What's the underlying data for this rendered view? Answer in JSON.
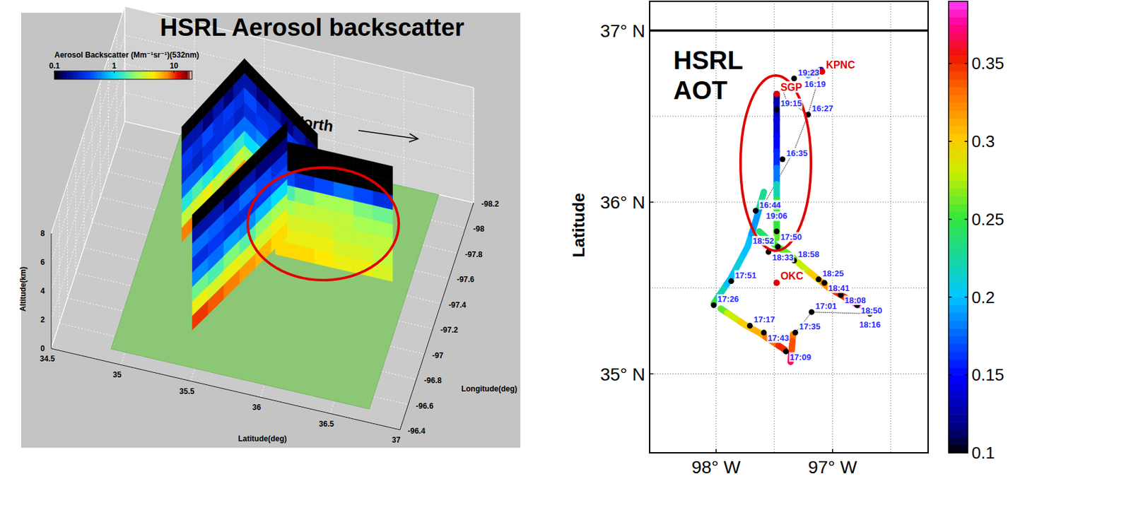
{
  "chart_data": [
    {
      "type": "curtain3d",
      "title": "HSRL Aerosol backscatter",
      "annotation": "North",
      "colorbar": {
        "label": "Aerosol Backscatter (Mm⁻¹sr⁻¹)(532nm)",
        "range": [
          0.1,
          20
        ],
        "ticks": [
          0.1,
          1,
          10
        ],
        "log": true
      },
      "xlabel": "Latitude(deg)",
      "ylabel": "Longitude(deg)",
      "zlabel": "Altitude(km)",
      "xlim": [
        34.5,
        37
      ],
      "xticks": [
        34.5,
        35,
        35.5,
        36,
        36.5,
        37
      ],
      "ylim": [
        -98.2,
        -96.4
      ],
      "yticks": [
        -98.2,
        -98,
        -97.8,
        -97.6,
        -97.4,
        -97.2,
        -97,
        -96.8,
        -96.6,
        -96.4
      ],
      "zlim": [
        0,
        8
      ],
      "zticks": [
        0,
        2,
        4,
        6,
        8
      ],
      "grid": true,
      "ground": {
        "lat": [
          34.9,
          36.75
        ],
        "lon": [
          -98.2,
          -96.5
        ]
      },
      "altitudes": [
        0,
        1,
        2,
        3,
        4,
        5,
        6,
        7,
        8
      ],
      "curtains": [
        {
          "start": [
            35.14,
            -97.41
          ],
          "end": [
            35.41,
            -98.02
          ],
          "backscatter": [
            [
              8,
              3,
              1.2,
              0.5,
              0.3,
              0.35,
              0.2,
              0.1
            ],
            [
              7,
              3.5,
              1.5,
              0.5,
              0.25,
              0.3,
              0.2,
              0.1
            ],
            [
              9,
              4,
              1.2,
              0.4,
              0.3,
              0.4,
              0.15,
              0.1
            ],
            [
              6,
              3,
              1,
              0.5,
              0.3,
              0.3,
              0.2,
              0.1
            ],
            [
              8,
              2.5,
              1.1,
              0.6,
              0.3,
              0.35,
              0.15,
              0.1
            ],
            [
              7,
              3,
              1.3,
              0.5,
              0.25,
              0.3,
              0.2,
              0.1
            ]
          ]
        },
        {
          "start": [
            35.41,
            -98.02
          ],
          "end": [
            36.06,
            -97.59
          ],
          "backscatter": [
            [
              6,
              2.5,
              1,
              0.5,
              0.3,
              0.4,
              0.2,
              0.1
            ],
            [
              7,
              3,
              1.2,
              0.6,
              0.35,
              0.3,
              0.15,
              0.1
            ],
            [
              8,
              3,
              1,
              0.5,
              0.3,
              0.3,
              0.2,
              0.1
            ],
            [
              6,
              2,
              0.9,
              0.4,
              0.25,
              0.35,
              0.15,
              0.1
            ],
            [
              7,
              2.5,
              1.1,
              0.5,
              0.3,
              0.3,
              0.2,
              0.1
            ],
            [
              5,
              3,
              1.4,
              0.6,
              0.3,
              0.3,
              0.15,
              0.1
            ]
          ]
        },
        {
          "start": [
            35.4,
            -96.78
          ],
          "end": [
            35.83,
            -97.63
          ],
          "backscatter": [
            [
              10,
              4,
              1.8,
              0.6,
              0.3,
              0.5,
              0.2,
              0.1
            ],
            [
              9,
              3.5,
              1.5,
              0.5,
              0.35,
              0.45,
              0.2,
              0.1
            ],
            [
              8,
              4,
              2,
              0.7,
              0.3,
              0.4,
              0.15,
              0.1
            ],
            [
              7,
              3.5,
              1.6,
              0.6,
              0.3,
              0.5,
              0.2,
              0.1
            ],
            [
              6,
              3.5,
              2.2,
              0.8,
              0.35,
              0.4,
              0.15,
              0.1
            ],
            [
              5,
              4,
              2.5,
              1,
              0.4,
              0.3,
              0.15,
              0.1
            ]
          ]
        },
        {
          "start": [
            35.79,
            -97.48
          ],
          "end": [
            36.63,
            -97.48
          ],
          "backscatter": [
            [
              5,
              4,
              3.5,
              2.5,
              1.5,
              0.4,
              0.1,
              0.1
            ],
            [
              5,
              4,
              3.5,
              3,
              2,
              0.3,
              0.1,
              0.1
            ],
            [
              4.5,
              4,
              3.5,
              3,
              2.5,
              0.4,
              0.1,
              0.1
            ],
            [
              4,
              3.5,
              3,
              3,
              2.5,
              0.5,
              0.1,
              0.1
            ],
            [
              4,
              3.5,
              3,
              2.5,
              2,
              0.4,
              0.1,
              0.1
            ],
            [
              3.5,
              3,
              3,
              2.5,
              1.8,
              0.3,
              0.1,
              0.1
            ]
          ]
        }
      ]
    },
    {
      "type": "map",
      "title": "HSRL AOT",
      "ylabel": "Latitude",
      "xlim": [
        -98.57,
        -96.18
      ],
      "xticks": [
        {
          "value": -98,
          "label": "98° W"
        },
        {
          "value": -97,
          "label": "97° W"
        }
      ],
      "ylim": [
        34.54,
        37.17
      ],
      "yticks": [
        {
          "value": 35,
          "label": "35° N"
        },
        {
          "value": 36,
          "label": "36° N"
        },
        {
          "value": 37,
          "label": "37° N"
        }
      ],
      "grid": true,
      "grid_lat": [
        35,
        35.5,
        36,
        36.5
      ],
      "grid_lon": [
        -98,
        -97.5,
        -97,
        -96.5
      ],
      "border_lat": 37,
      "colorbar": {
        "range": [
          0.1,
          0.39
        ],
        "ticks": [
          0.1,
          0.15,
          0.2,
          0.25,
          0.3,
          0.35
        ]
      },
      "stations": [
        {
          "name": "SGP",
          "lat": 36.63,
          "lon": -97.48
        },
        {
          "name": "KPNC",
          "lat": 36.76,
          "lon": -97.09
        },
        {
          "name": "OKC",
          "lat": 35.53,
          "lon": -97.48
        }
      ],
      "flight_path": [
        [
          [
            36.77,
            -97.1
          ],
          [
            36.51,
            -97.21
          ],
          [
            36.3,
            -97.33
          ],
          [
            35.95,
            -97.62
          ]
        ],
        [
          [
            36.63,
            -97.48
          ],
          [
            36.66,
            -97.43
          ],
          [
            36.6,
            -97.4
          ],
          [
            36.51,
            -97.21
          ]
        ],
        [
          [
            35.35,
            -96.66
          ],
          [
            35.36,
            -97.18
          ],
          [
            35.23,
            -97.33
          ]
        ]
      ],
      "track": [
        [
          {
            "lat": 36.63,
            "lon": -97.48,
            "aot": 0.12
          },
          {
            "lat": 36.53,
            "lon": -97.48,
            "aot": 0.13
          },
          {
            "lat": 36.43,
            "lon": -97.48,
            "aot": 0.14
          },
          {
            "lat": 36.34,
            "lon": -97.48,
            "aot": 0.15
          },
          {
            "lat": 36.25,
            "lon": -97.48,
            "aot": 0.16
          },
          {
            "lat": 36.15,
            "lon": -97.48,
            "aot": 0.18
          },
          {
            "lat": 36.06,
            "lon": -97.48,
            "aot": 0.22
          },
          {
            "lat": 35.97,
            "lon": -97.48,
            "aot": 0.25
          },
          {
            "lat": 35.87,
            "lon": -97.48,
            "aot": 0.25
          },
          {
            "lat": 35.79,
            "lon": -97.48,
            "aot": 0.26
          }
        ],
        [
          {
            "lat": 35.83,
            "lon": -97.63,
            "aot": 0.24
          },
          {
            "lat": 35.78,
            "lon": -97.55,
            "aot": 0.24
          },
          {
            "lat": 35.74,
            "lon": -97.47,
            "aot": 0.25
          },
          {
            "lat": 35.69,
            "lon": -97.36,
            "aot": 0.26
          },
          {
            "lat": 35.62,
            "lon": -97.25,
            "aot": 0.28
          },
          {
            "lat": 35.56,
            "lon": -97.14,
            "aot": 0.3
          },
          {
            "lat": 35.5,
            "lon": -97.03,
            "aot": 0.32
          },
          {
            "lat": 35.46,
            "lon": -96.93,
            "aot": 0.35
          },
          {
            "lat": 35.4,
            "lon": -96.78,
            "aot": 0.39
          }
        ],
        [
          {
            "lat": 35.41,
            "lon": -98.02,
            "aot": 0.25
          },
          {
            "lat": 35.48,
            "lon": -97.95,
            "aot": 0.22
          },
          {
            "lat": 35.56,
            "lon": -97.87,
            "aot": 0.2
          },
          {
            "lat": 35.65,
            "lon": -97.8,
            "aot": 0.21
          },
          {
            "lat": 35.74,
            "lon": -97.73,
            "aot": 0.2
          },
          {
            "lat": 35.89,
            "lon": -97.66,
            "aot": 0.19
          },
          {
            "lat": 36.06,
            "lon": -97.59,
            "aot": 0.23
          }
        ],
        [
          {
            "lat": 35.38,
            "lon": -97.96,
            "aot": 0.26
          },
          {
            "lat": 35.33,
            "lon": -97.85,
            "aot": 0.28
          },
          {
            "lat": 35.28,
            "lon": -97.74,
            "aot": 0.3
          },
          {
            "lat": 35.24,
            "lon": -97.63,
            "aot": 0.31
          },
          {
            "lat": 35.19,
            "lon": -97.52,
            "aot": 0.33
          },
          {
            "lat": 35.14,
            "lon": -97.41,
            "aot": 0.35
          }
        ],
        [
          {
            "lat": 35.23,
            "lon": -97.34,
            "aot": 0.33
          },
          {
            "lat": 35.15,
            "lon": -97.35,
            "aot": 0.34
          },
          {
            "lat": 35.07,
            "lon": -97.36,
            "aot": 0.37
          }
        ],
        [
          {
            "lat": 36.74,
            "lon": -97.21,
            "aot": 0.18
          },
          {
            "lat": 36.77,
            "lon": -97.1,
            "aot": 0.14
          }
        ]
      ],
      "times": [
        {
          "label": "19:23",
          "lat": 36.72,
          "lon": -97.33
        },
        {
          "label": "16:19",
          "lat": 36.75,
          "lon": -97.15
        },
        {
          "label": "19:15",
          "lat": 36.54,
          "lon": -97.48
        },
        {
          "label": "16:27",
          "lat": 36.51,
          "lon": -97.21
        },
        {
          "label": "16:35",
          "lat": 36.25,
          "lon": -97.43
        },
        {
          "label": "16:44",
          "lat": 35.95,
          "lon": -97.66
        },
        {
          "label": "19:06",
          "lat": 35.98,
          "lon": -97.48
        },
        {
          "label": "17:50",
          "lat": 35.83,
          "lon": -97.48
        },
        {
          "label": "18:33",
          "lat": 35.71,
          "lon": -97.55
        },
        {
          "label": "18:52",
          "lat": 35.74,
          "lon": -97.47
        },
        {
          "label": "18:58",
          "lat": 35.66,
          "lon": -97.33
        },
        {
          "label": "18:25",
          "lat": 35.55,
          "lon": -97.12
        },
        {
          "label": "18:41",
          "lat": 35.53,
          "lon": -97.07
        },
        {
          "label": "18:08",
          "lat": 35.46,
          "lon": -96.93
        },
        {
          "label": "18:50",
          "lat": 35.4,
          "lon": -96.79
        },
        {
          "label": "18:16",
          "lat": 35.35,
          "lon": -96.68
        },
        {
          "label": "17:01",
          "lat": 35.36,
          "lon": -97.18
        },
        {
          "label": "17:51",
          "lat": 35.54,
          "lon": -97.87
        },
        {
          "label": "17:26",
          "lat": 35.4,
          "lon": -98.02
        },
        {
          "label": "17:17",
          "lat": 35.28,
          "lon": -97.71
        },
        {
          "label": "17:43",
          "lat": 35.24,
          "lon": -97.59
        },
        {
          "label": "17:35",
          "lat": 35.24,
          "lon": -97.32
        },
        {
          "label": "17:09",
          "lat": 35.13,
          "lon": -97.4
        }
      ]
    }
  ]
}
